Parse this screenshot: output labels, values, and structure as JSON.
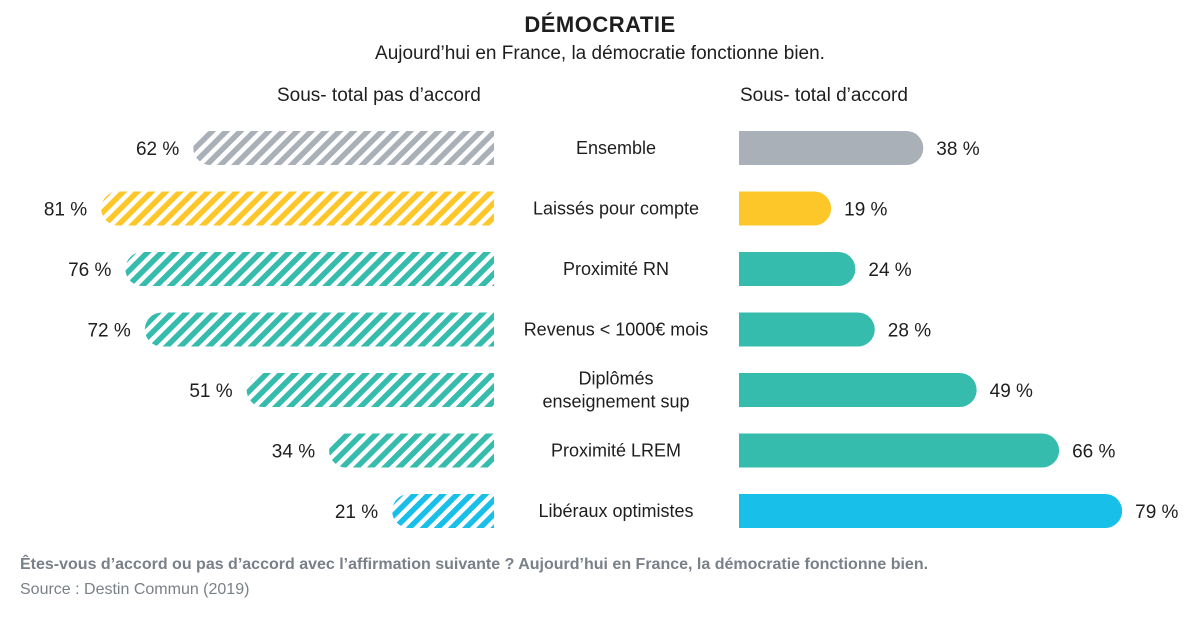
{
  "title": "DÉMOCRATIE",
  "subtitle": "Aujourd’hui en France, la démocratie fonctionne bien.",
  "left_header": "Sous- total pas d’accord",
  "right_header": "Sous- total d’accord",
  "footer": {
    "question": "Êtes-vous d’accord ou pas d’accord avec l’affirmation suivante ? Aujourd’hui en France, la démocratie fonctionne bien.",
    "source": "Source : Destin Commun (2019)"
  },
  "chart_data": {
    "type": "bar",
    "categories": [
      "Ensemble",
      "Laissés pour compte",
      "Proximité RN",
      "Revenus < 1000€ mois",
      "Diplômés enseignement sup",
      "Proximité LREM",
      "Libéraux optimistes"
    ],
    "category_lines": [
      [
        "Ensemble"
      ],
      [
        "Laissés pour compte"
      ],
      [
        "Proximité RN"
      ],
      [
        "Revenus < 1000€ mois"
      ],
      [
        "Diplômés",
        "enseignement sup"
      ],
      [
        "Proximité LREM"
      ],
      [
        "Libéraux optimistes"
      ]
    ],
    "series": [
      {
        "name": "Sous- total pas d’accord",
        "values": [
          62,
          81,
          76,
          72,
          51,
          34,
          21
        ],
        "labels": [
          "62 %",
          "81 %",
          "76 %",
          "72 %",
          "51 %",
          "34 %",
          "21 %"
        ]
      },
      {
        "name": "Sous- total d’accord",
        "values": [
          38,
          19,
          24,
          28,
          49,
          66,
          79
        ],
        "labels": [
          "38 %",
          "19 %",
          "24 %",
          "28 %",
          "49 %",
          "66 %",
          "79 %"
        ]
      }
    ],
    "colors": [
      "#a9b0b8",
      "#fdc72a",
      "#35bcad",
      "#35bcad",
      "#35bcad",
      "#35bcad",
      "#17bfe9"
    ],
    "unit": "%",
    "ylim": [
      0,
      100
    ],
    "grid": false,
    "legend": "none"
  }
}
